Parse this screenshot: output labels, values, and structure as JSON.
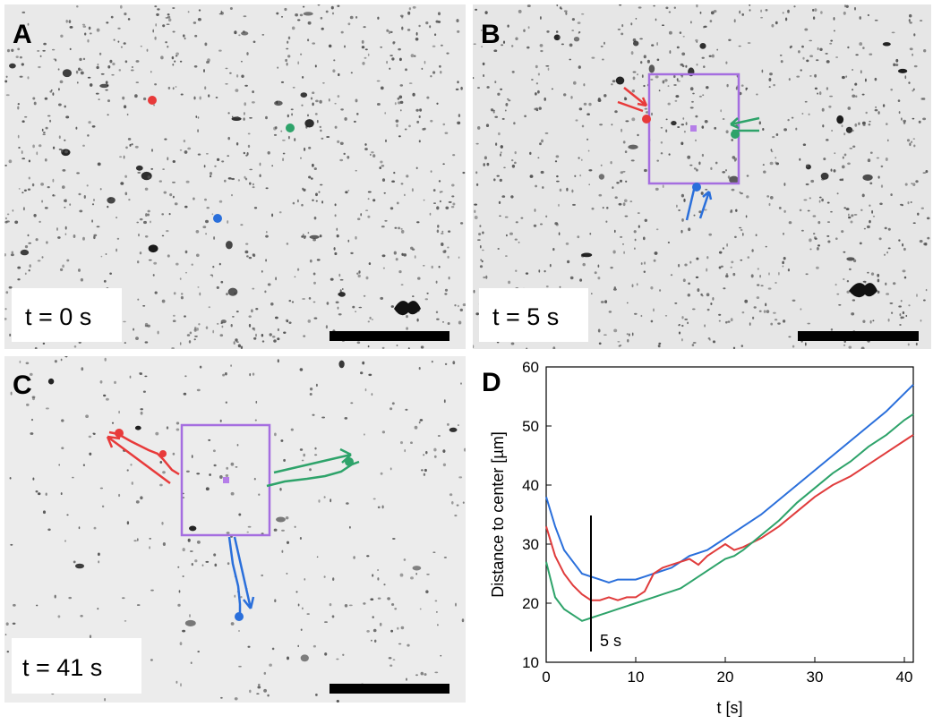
{
  "panels": [
    {
      "label": "A",
      "time": "t = 0 s"
    },
    {
      "label": "B",
      "time": "t = 5 s"
    },
    {
      "label": "C",
      "time": "t = 41 s"
    }
  ],
  "chart_data": {
    "type": "line",
    "label": "D",
    "x_label": "t [s]",
    "y_label": "Distance to center [µm]",
    "x": [
      0,
      1,
      2,
      3,
      4,
      5,
      6,
      7,
      8,
      9,
      10,
      11,
      12,
      13,
      14,
      15,
      16,
      17,
      18,
      19,
      20,
      21,
      22,
      24,
      26,
      28,
      30,
      32,
      34,
      36,
      38,
      40,
      41
    ],
    "series": [
      {
        "color": "#2a6fdb",
        "values": [
          38,
          33,
          29,
          27,
          25,
          24.5,
          24,
          23.5,
          24,
          24,
          24,
          24.5,
          25,
          25.5,
          26,
          27,
          28,
          28.5,
          29,
          30,
          31,
          32,
          33,
          35,
          37.5,
          40,
          42.5,
          45,
          47.5,
          50,
          52.5,
          55.5,
          57
        ]
      },
      {
        "color": "#e03c3c",
        "values": [
          33,
          28,
          25,
          23,
          21.5,
          20.5,
          20.5,
          21,
          20.5,
          21,
          21,
          22,
          25,
          26,
          26.5,
          27,
          27.5,
          26.5,
          28,
          29,
          30,
          29,
          29.5,
          31,
          33,
          35.5,
          38,
          40,
          41.5,
          43.5,
          45.5,
          47.5,
          48.5
        ]
      },
      {
        "color": "#2ea36a",
        "values": [
          27,
          21,
          19,
          18,
          17,
          17.5,
          18,
          18.5,
          19,
          19.5,
          20,
          20.5,
          21,
          21.5,
          22,
          22.5,
          23.5,
          24.5,
          25.5,
          26.5,
          27.5,
          28,
          29,
          31.5,
          34,
          37,
          39.5,
          42,
          44,
          46.5,
          48.5,
          51,
          52
        ]
      }
    ],
    "annotation": {
      "text": "5 s",
      "x": 5
    },
    "xlim": [
      0,
      41
    ],
    "ylim": [
      10,
      60
    ],
    "xticks": [
      0,
      10,
      20,
      30,
      40
    ],
    "yticks": [
      10,
      20,
      30,
      40,
      50,
      60
    ]
  }
}
